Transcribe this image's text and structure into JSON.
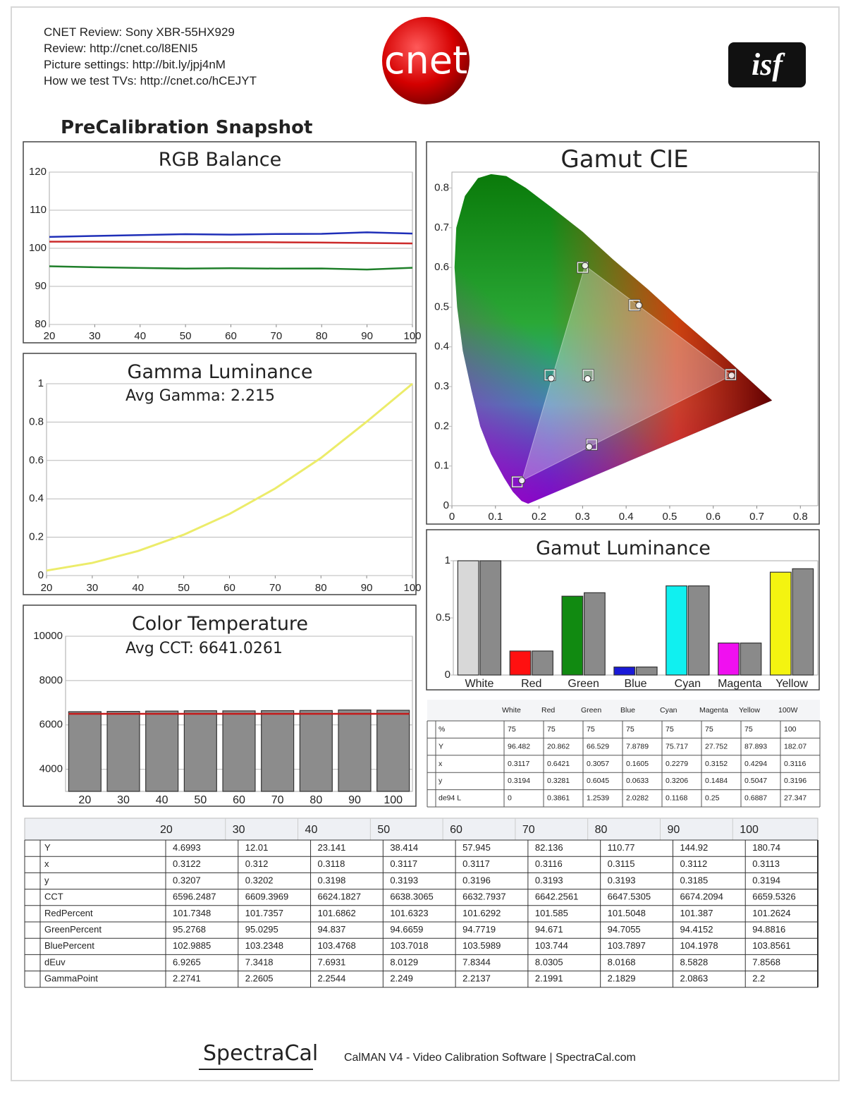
{
  "header": {
    "lines": [
      "CNET Review: Sony XBR-55HX929",
      "Review: http://cnet.co/l8ENI5",
      "Picture settings: http://bit.ly/jpj4nM",
      "How we test TVs: http://cnet.co/hCEJYT"
    ],
    "logo": "cnet",
    "badge": "isf"
  },
  "title": "PreCalibration Snapshot",
  "chart_data": [
    {
      "type": "line",
      "title": "RGB Balance",
      "x": [
        20,
        30,
        40,
        50,
        60,
        70,
        80,
        90,
        100
      ],
      "series": [
        {
          "color": "#1f2fb8",
          "values": [
            102.9885,
            103.2348,
            103.4768,
            103.7018,
            103.5989,
            103.744,
            103.7897,
            104.1978,
            103.8561
          ]
        },
        {
          "color": "#cc2a2a",
          "values": [
            101.7348,
            101.7357,
            101.6862,
            101.6323,
            101.6292,
            101.585,
            101.5048,
            101.387,
            101.2624
          ]
        },
        {
          "color": "#1f7f2a",
          "values": [
            95.2768,
            95.0295,
            94.837,
            94.6659,
            94.7719,
            94.671,
            94.7055,
            94.4152,
            94.8816
          ]
        }
      ],
      "xlim": [
        20,
        100
      ],
      "xticks": [
        20,
        30,
        40,
        50,
        60,
        70,
        80,
        90,
        100
      ],
      "ylim": [
        80,
        120
      ],
      "yticks": [
        80,
        90,
        100,
        110,
        120
      ],
      "grid": true
    },
    {
      "type": "line",
      "title": "Gamma Luminance",
      "subtitle": "Avg Gamma: 2.215",
      "x": [
        20,
        30,
        40,
        50,
        60,
        70,
        80,
        90,
        100
      ],
      "series": [
        {
          "color": "#ecec6a",
          "values": [
            0.026,
            0.066,
            0.128,
            0.213,
            0.321,
            0.454,
            0.613,
            0.802,
            1
          ]
        }
      ],
      "xlim": [
        20,
        100
      ],
      "xticks": [
        20,
        30,
        40,
        50,
        60,
        70,
        80,
        90,
        100
      ],
      "ylim": [
        0,
        1
      ],
      "yticks": [
        0,
        0.2,
        0.4,
        0.6,
        0.8,
        1
      ],
      "grid": true
    },
    {
      "type": "bar",
      "title": "Color Temperature",
      "subtitle": "Avg CCT: 6641.0261",
      "categories": [
        "20",
        "30",
        "40",
        "50",
        "60",
        "70",
        "80",
        "90",
        "100"
      ],
      "series": [
        {
          "color": "#8c8c8c",
          "values": [
            6596.2487,
            6609.3969,
            6624.1827,
            6638.3065,
            6632.7937,
            6642.2561,
            6647.5305,
            6674.2094,
            6659.5326
          ]
        }
      ],
      "target": 6500,
      "target_color": "#c41a1a",
      "ylim": [
        3000,
        10000
      ],
      "yticks": [
        4000,
        6000,
        8000,
        10000
      ],
      "grid": true
    },
    {
      "type": "bar",
      "title": "Gamut Luminance",
      "categories": [
        "White",
        "Red",
        "Green",
        "Blue",
        "Cyan",
        "Magenta",
        "Yellow"
      ],
      "series": [
        {
          "colors": [
            "#d8d8d8",
            "#ff1010",
            "#118a11",
            "#1a1ad8",
            "#10f0f0",
            "#f010f0",
            "#f4f410"
          ],
          "values": [
            1,
            0.21,
            0.69,
            0.07,
            0.78,
            0.28,
            0.9
          ]
        },
        {
          "color": "#8a8a8a",
          "values": [
            1,
            0.21,
            0.72,
            0.07,
            0.78,
            0.28,
            0.93
          ]
        }
      ],
      "ylim": [
        0,
        1
      ],
      "yticks": [
        0,
        0.5,
        1
      ],
      "grid": false
    },
    {
      "type": "scatter",
      "title": "Gamut CIE",
      "x": [
        0.64,
        0.3,
        0.15,
        0.225,
        0.321,
        0.419,
        0.3127
      ],
      "values": [
        0.33,
        0.6,
        0.06,
        0.329,
        0.154,
        0.505,
        0.329
      ],
      "xlim": [
        0,
        0.84
      ],
      "xticks": [
        0,
        0.1,
        0.2,
        0.3,
        0.4,
        0.5,
        0.6,
        0.7,
        0.8
      ],
      "ylim": [
        0,
        0.84
      ],
      "yticks": [
        0,
        0.1,
        0.2,
        0.3,
        0.4,
        0.5,
        0.6,
        0.7,
        0.8
      ],
      "grid": false
    }
  ],
  "gamut_table": {
    "columns": [
      "White",
      "Red",
      "Green",
      "Blue",
      "Cyan",
      "Magenta",
      "Yellow",
      "100W"
    ],
    "rows": [
      {
        "label": "%",
        "values": [
          75,
          75,
          75,
          75,
          75,
          75,
          75,
          100
        ]
      },
      {
        "label": "Y",
        "values": [
          96.482,
          20.862,
          66.529,
          7.8789,
          75.717,
          27.752,
          87.893,
          182.07
        ]
      },
      {
        "label": "x",
        "values": [
          0.3117,
          0.6421,
          0.3057,
          0.1605,
          0.2279,
          0.3152,
          0.4294,
          0.3116
        ]
      },
      {
        "label": "y",
        "values": [
          0.3194,
          0.3281,
          0.6045,
          0.0633,
          0.3206,
          0.1484,
          0.5047,
          0.3196
        ]
      },
      {
        "label": "de94 L",
        "values": [
          0,
          0.3861,
          1.2539,
          2.0282,
          0.1168,
          0.25,
          0.6887,
          27.347
        ]
      }
    ]
  },
  "main_table": {
    "columns": [
      20,
      30,
      40,
      50,
      60,
      70,
      80,
      90,
      100
    ],
    "rows": [
      {
        "label": "Y",
        "values": [
          4.6993,
          12.01,
          23.141,
          38.414,
          57.945,
          82.136,
          110.77,
          144.92,
          180.74
        ]
      },
      {
        "label": "x",
        "values": [
          0.3122,
          0.312,
          0.3118,
          0.3117,
          0.3117,
          0.3116,
          0.3115,
          0.3112,
          0.3113
        ]
      },
      {
        "label": "y",
        "values": [
          0.3207,
          0.3202,
          0.3198,
          0.3193,
          0.3196,
          0.3193,
          0.3193,
          0.3185,
          0.3194
        ]
      },
      {
        "label": "CCT",
        "values": [
          6596.2487,
          6609.3969,
          6624.1827,
          6638.3065,
          6632.7937,
          6642.2561,
          6647.5305,
          6674.2094,
          6659.5326
        ]
      },
      {
        "label": "RedPercent",
        "values": [
          101.7348,
          101.7357,
          101.6862,
          101.6323,
          101.6292,
          101.585,
          101.5048,
          101.387,
          101.2624
        ]
      },
      {
        "label": "GreenPercent",
        "values": [
          95.2768,
          95.0295,
          94.837,
          94.6659,
          94.7719,
          94.671,
          94.7055,
          94.4152,
          94.8816
        ]
      },
      {
        "label": "BluePercent",
        "values": [
          102.9885,
          103.2348,
          103.4768,
          103.7018,
          103.5989,
          103.744,
          103.7897,
          104.1978,
          103.8561
        ]
      },
      {
        "label": "dEuv",
        "values": [
          6.9265,
          7.3418,
          7.6931,
          8.0129,
          7.8344,
          8.0305,
          8.0168,
          8.5828,
          7.8568
        ]
      },
      {
        "label": "GammaPoint",
        "values": [
          2.2741,
          2.2605,
          2.2544,
          2.249,
          2.2137,
          2.1991,
          2.1829,
          2.0863,
          2.2
        ]
      }
    ]
  },
  "footer": {
    "brand": "SpectraCal",
    "text": "CalMAN V4 - Video Calibration Software | SpectraCal.com"
  }
}
